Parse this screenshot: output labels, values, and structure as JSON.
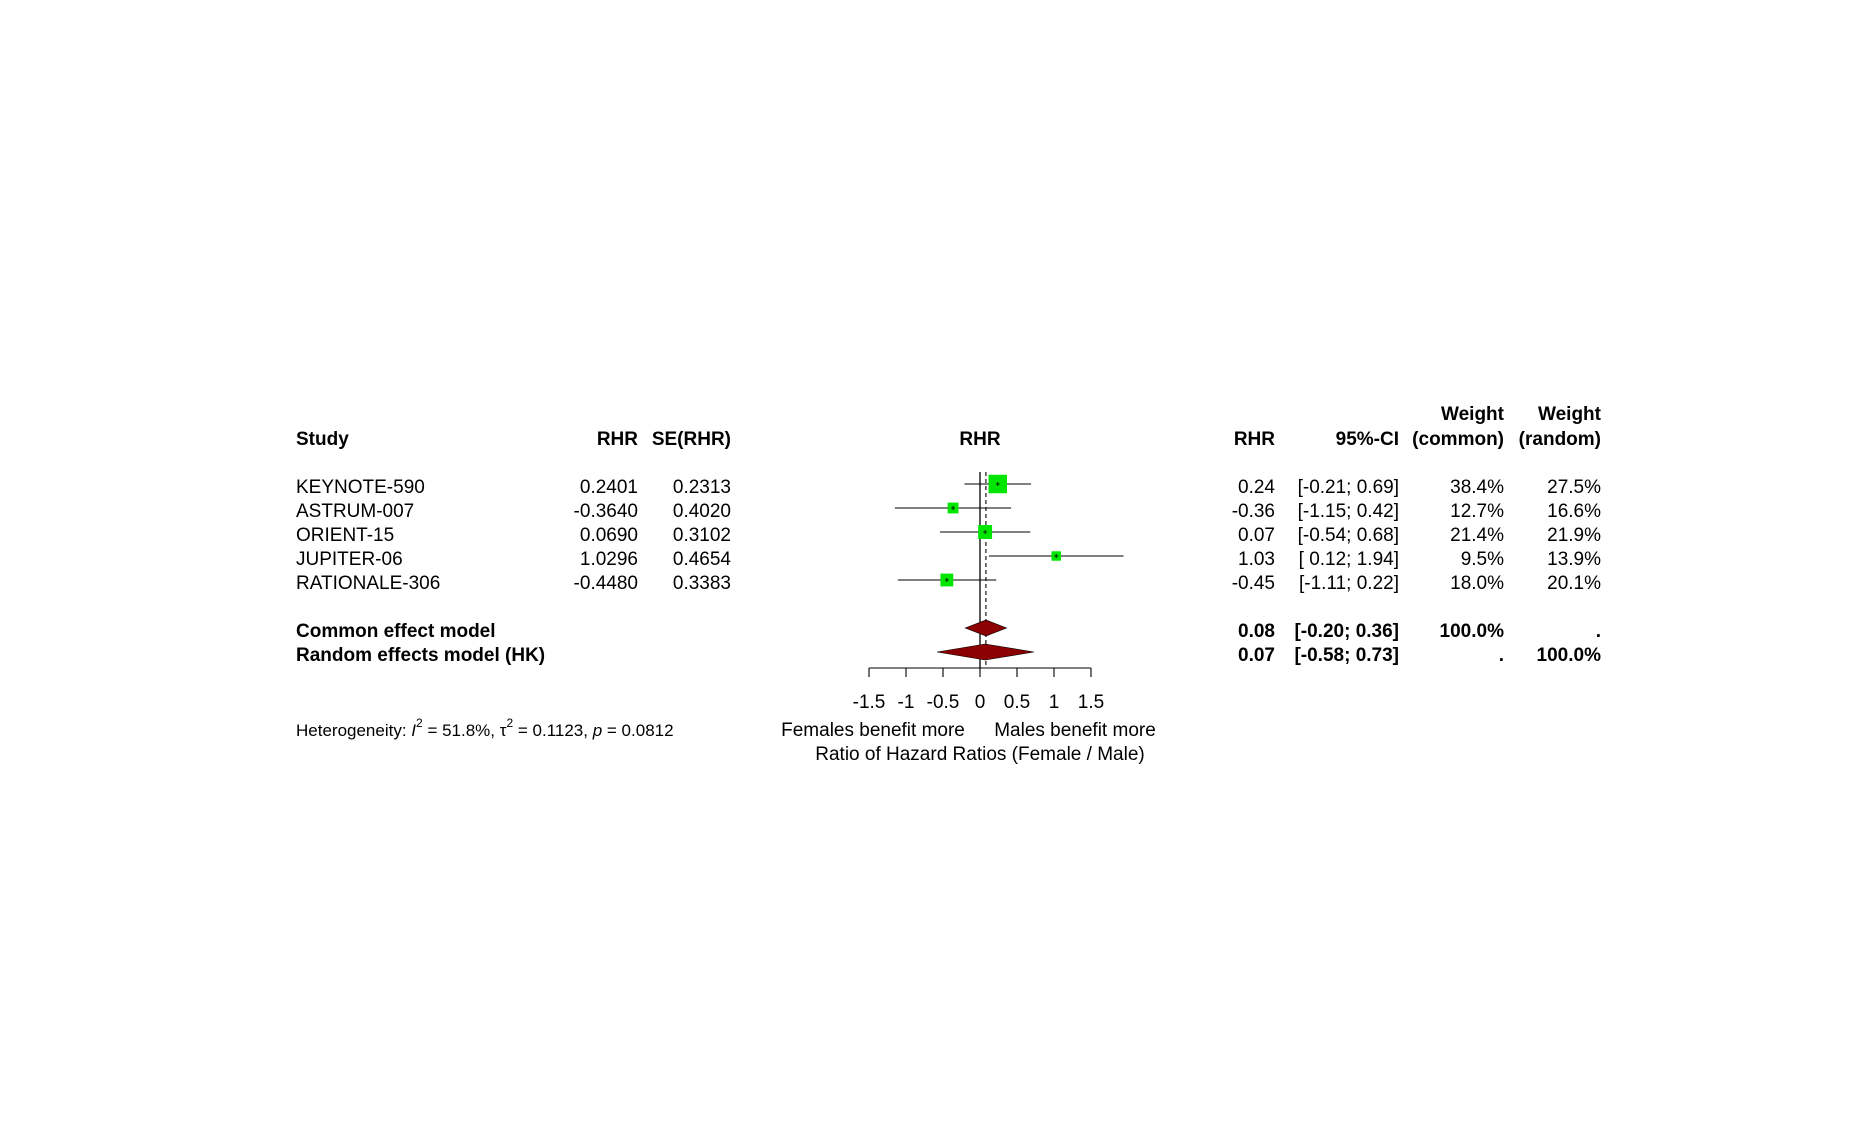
{
  "chart_data": {
    "type": "forest",
    "headers": {
      "study": "Study",
      "rhr": "RHR",
      "se": "SE(RHR)",
      "plot": "RHR",
      "rhr_right": "RHR",
      "ci": "95%-CI",
      "weight_common_top": "Weight",
      "weight_common_bottom": "(common)",
      "weight_random_top": "Weight",
      "weight_random_bottom": "(random)"
    },
    "studies": [
      {
        "name": "KEYNOTE-590",
        "rhr": "0.2401",
        "se": "0.2313",
        "rhr_text": "0.24",
        "ci_text": "[-0.21; 0.69]",
        "w_common": "38.4%",
        "w_random": "27.5%",
        "est": 0.2401,
        "lower": -0.21,
        "upper": 0.69,
        "weight": 38.4
      },
      {
        "name": "ASTRUM-007",
        "rhr": "-0.3640",
        "se": "0.4020",
        "rhr_text": "-0.36",
        "ci_text": "[-1.15; 0.42]",
        "w_common": "12.7%",
        "w_random": "16.6%",
        "est": -0.364,
        "lower": -1.15,
        "upper": 0.42,
        "weight": 12.7
      },
      {
        "name": "ORIENT-15",
        "rhr": "0.0690",
        "se": "0.3102",
        "rhr_text": "0.07",
        "ci_text": "[-0.54; 0.68]",
        "w_common": "21.4%",
        "w_random": "21.9%",
        "est": 0.069,
        "lower": -0.54,
        "upper": 0.68,
        "weight": 21.4
      },
      {
        "name": "JUPITER-06",
        "rhr": "1.0296",
        "se": "0.4654",
        "rhr_text": "1.03",
        "ci_text": "[ 0.12; 1.94]",
        "w_common": "9.5%",
        "w_random": "13.9%",
        "est": 1.0296,
        "lower": 0.12,
        "upper": 1.94,
        "weight": 9.5
      },
      {
        "name": "RATIONALE-306",
        "rhr": "-0.4480",
        "se": "0.3383",
        "rhr_text": "-0.45",
        "ci_text": "[-1.11; 0.22]",
        "w_common": "18.0%",
        "w_random": "20.1%",
        "est": -0.448,
        "lower": -1.11,
        "upper": 0.22,
        "weight": 18.0
      }
    ],
    "models": [
      {
        "name": "Common effect model",
        "rhr_text": "0.08",
        "ci_text": "[-0.20; 0.36]",
        "w_common": "100.0%",
        "w_random": ".",
        "est": 0.08,
        "lower": -0.2,
        "upper": 0.36
      },
      {
        "name": "Random effects model (HK)",
        "rhr_text": "0.07",
        "ci_text": "[-0.58; 0.73]",
        "w_common": ".",
        "w_random": "100.0%",
        "est": 0.07,
        "lower": -0.58,
        "upper": 0.73
      }
    ],
    "x_axis": {
      "ticks": [
        -1.5,
        -1,
        -0.5,
        0,
        0.5,
        1,
        1.5
      ],
      "tick_labels": [
        "-1.5",
        "-1",
        "-0.5",
        "0",
        "0.5",
        "1",
        "1.5"
      ],
      "xlim": [
        -1.5,
        1.5
      ],
      "null_line": 0,
      "label_left": "Females benefit more",
      "label_right": "Males benefit more",
      "xlabel": "Ratio of Hazard Ratios (Female / Male)"
    },
    "heterogeneity": {
      "prefix": "Heterogeneity: ",
      "i2_symbol": "I",
      "i2_value": " = 51.8%, ",
      "tau_symbol": "τ",
      "tau_value": " = 0.1123, ",
      "p_symbol": "p",
      "p_value": " = 0.0812",
      "superscript": "2"
    },
    "colors": {
      "study_square": "#00e600",
      "diamond": "#8b0000",
      "lines": "#000000"
    }
  }
}
